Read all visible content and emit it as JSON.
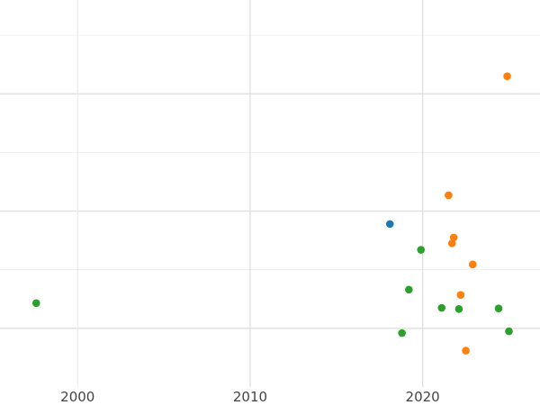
{
  "chart_data": {
    "type": "scatter",
    "title": "",
    "xlabel": "",
    "ylabel": "",
    "grid": true,
    "legend": "none",
    "xlim": [
      1995.5,
      2026.8
    ],
    "ylim": [
      0,
      6.6
    ],
    "x_ticks": [
      2000,
      2010,
      2020
    ],
    "x_tick_labels": [
      "2000",
      "2010",
      "2020"
    ],
    "y_gridlines": [
      1,
      2,
      3,
      4,
      5,
      6
    ],
    "series": [
      {
        "color": "#1f77b4",
        "points": [
          {
            "x": 2018.1,
            "y": 2.78
          }
        ]
      },
      {
        "color": "#ff7f0e",
        "points": [
          {
            "x": 2024.9,
            "y": 5.3
          },
          {
            "x": 2021.5,
            "y": 3.27
          },
          {
            "x": 2021.8,
            "y": 2.55
          },
          {
            "x": 2021.7,
            "y": 2.45
          },
          {
            "x": 2022.9,
            "y": 2.09
          },
          {
            "x": 2022.2,
            "y": 1.57
          },
          {
            "x": 2022.5,
            "y": 0.62
          }
        ]
      },
      {
        "color": "#2ca02c",
        "points": [
          {
            "x": 1997.6,
            "y": 1.43
          },
          {
            "x": 2019.9,
            "y": 2.34
          },
          {
            "x": 2019.2,
            "y": 1.66
          },
          {
            "x": 2021.1,
            "y": 1.35
          },
          {
            "x": 2022.1,
            "y": 1.33
          },
          {
            "x": 2024.4,
            "y": 1.34
          },
          {
            "x": 2018.8,
            "y": 0.92
          },
          {
            "x": 2025.0,
            "y": 0.95
          }
        ]
      }
    ]
  }
}
